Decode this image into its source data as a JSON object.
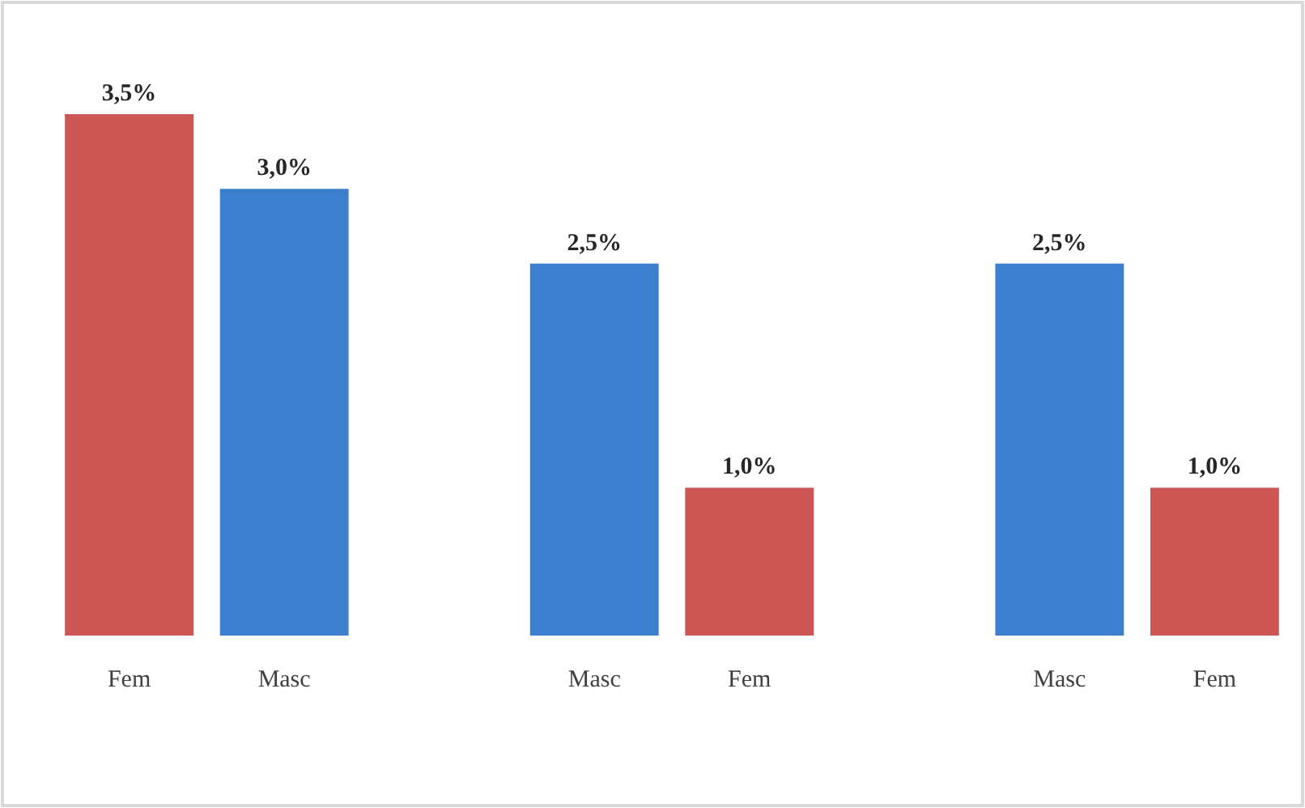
{
  "chart_data": {
    "type": "bar",
    "categories": [
      "Fem",
      "Masc",
      null,
      "Masc",
      "Fem",
      null,
      "Masc",
      "Fem"
    ],
    "values": [
      3.5,
      3.0,
      null,
      2.5,
      1.0,
      null,
      2.5,
      1.0
    ],
    "colors": [
      "#cd5553",
      "#3d7fcf",
      null,
      "#3d7fcf",
      "#cd5553",
      null,
      "#3d7fcf",
      "#cd5553"
    ],
    "value_labels": [
      "3,5%",
      "3,0%",
      null,
      "2,5%",
      "1,0%",
      null,
      "2,5%",
      "1,0%"
    ]
  }
}
